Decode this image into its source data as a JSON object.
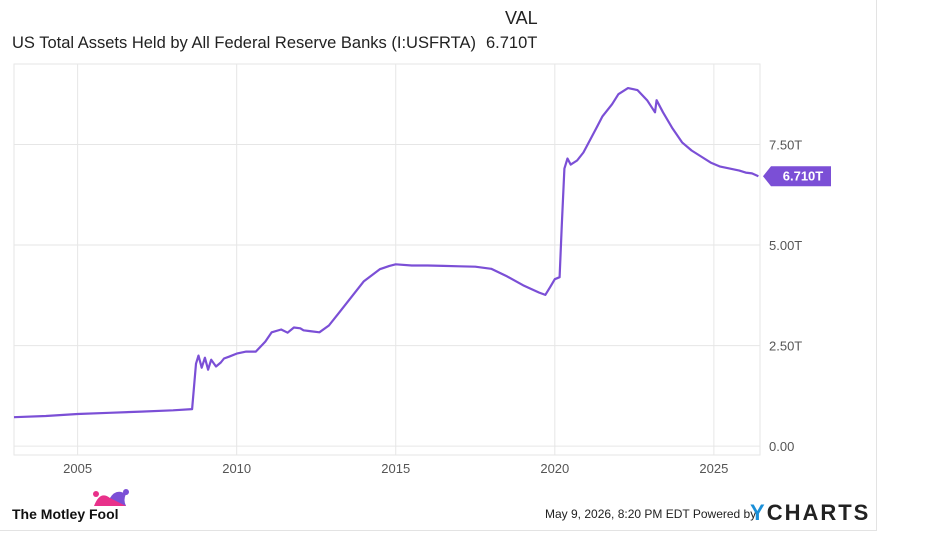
{
  "legend": {
    "header": "VAL",
    "series_name": "US Total Assets Held by All Federal Reserve Banks (I:USFRTA)",
    "series_value": "6.710T"
  },
  "footer": {
    "timestamp": "May 9, 2026, 8:20 PM EDT",
    "powered_by": "Powered by",
    "brand_y": "Y",
    "brand_rest": "CHARTS",
    "logo_text": "The Motley Fool"
  },
  "colors": {
    "line": "#7b4fd6",
    "label_bg": "#7b4fd6",
    "grid": "#e6e6e6"
  },
  "chart_data": {
    "type": "line",
    "title": "",
    "xlabel": "",
    "ylabel": "",
    "x_ticks": [
      "2005",
      "2010",
      "2015",
      "2020",
      "2025"
    ],
    "y_ticks": [
      "0.00",
      "2.50T",
      "5.00T",
      "7.50T"
    ],
    "y_tick_values": [
      0,
      2.5,
      5.0,
      7.5
    ],
    "xlim": [
      2003.0,
      2026.45
    ],
    "ylim": [
      -0.22,
      9.5
    ],
    "last_value_label": "6.710T",
    "series": [
      {
        "name": "US Total Assets Held by All Federal Reserve Banks (I:USFRTA)",
        "x": [
          2003.0,
          2004.0,
          2005.0,
          2006.0,
          2007.0,
          2008.0,
          2008.6,
          2008.72,
          2008.8,
          2008.9,
          2009.0,
          2009.1,
          2009.2,
          2009.35,
          2009.5,
          2009.6,
          2009.75,
          2010.0,
          2010.3,
          2010.6,
          2010.9,
          2011.1,
          2011.4,
          2011.6,
          2011.8,
          2012.0,
          2012.1,
          2012.3,
          2012.6,
          2012.9,
          2013.2,
          2013.6,
          2014.0,
          2014.5,
          2014.8,
          2015.0,
          2015.5,
          2016.0,
          2016.5,
          2017.0,
          2017.5,
          2018.0,
          2018.5,
          2019.0,
          2019.5,
          2019.7,
          2019.85,
          2020.0,
          2020.15,
          2020.22,
          2020.3,
          2020.4,
          2020.5,
          2020.7,
          2020.9,
          2021.0,
          2021.3,
          2021.5,
          2021.8,
          2022.0,
          2022.3,
          2022.6,
          2022.9,
          2023.15,
          2023.2,
          2023.4,
          2023.7,
          2024.0,
          2024.3,
          2024.6,
          2024.9,
          2025.2,
          2025.5,
          2025.8,
          2026.0,
          2026.2,
          2026.4
        ],
        "y": [
          0.72,
          0.75,
          0.8,
          0.83,
          0.86,
          0.89,
          0.92,
          2.05,
          2.25,
          1.95,
          2.2,
          1.9,
          2.15,
          1.98,
          2.08,
          2.18,
          2.22,
          2.3,
          2.35,
          2.35,
          2.6,
          2.83,
          2.9,
          2.82,
          2.95,
          2.93,
          2.88,
          2.86,
          2.83,
          3.0,
          3.3,
          3.7,
          4.1,
          4.4,
          4.48,
          4.52,
          4.49,
          4.49,
          4.48,
          4.47,
          4.46,
          4.41,
          4.22,
          4.0,
          3.82,
          3.76,
          3.95,
          4.15,
          4.2,
          5.5,
          6.9,
          7.15,
          7.0,
          7.1,
          7.3,
          7.45,
          7.9,
          8.2,
          8.5,
          8.75,
          8.9,
          8.85,
          8.6,
          8.3,
          8.6,
          8.3,
          7.9,
          7.55,
          7.35,
          7.2,
          7.05,
          6.95,
          6.9,
          6.85,
          6.8,
          6.78,
          6.71
        ]
      }
    ]
  }
}
